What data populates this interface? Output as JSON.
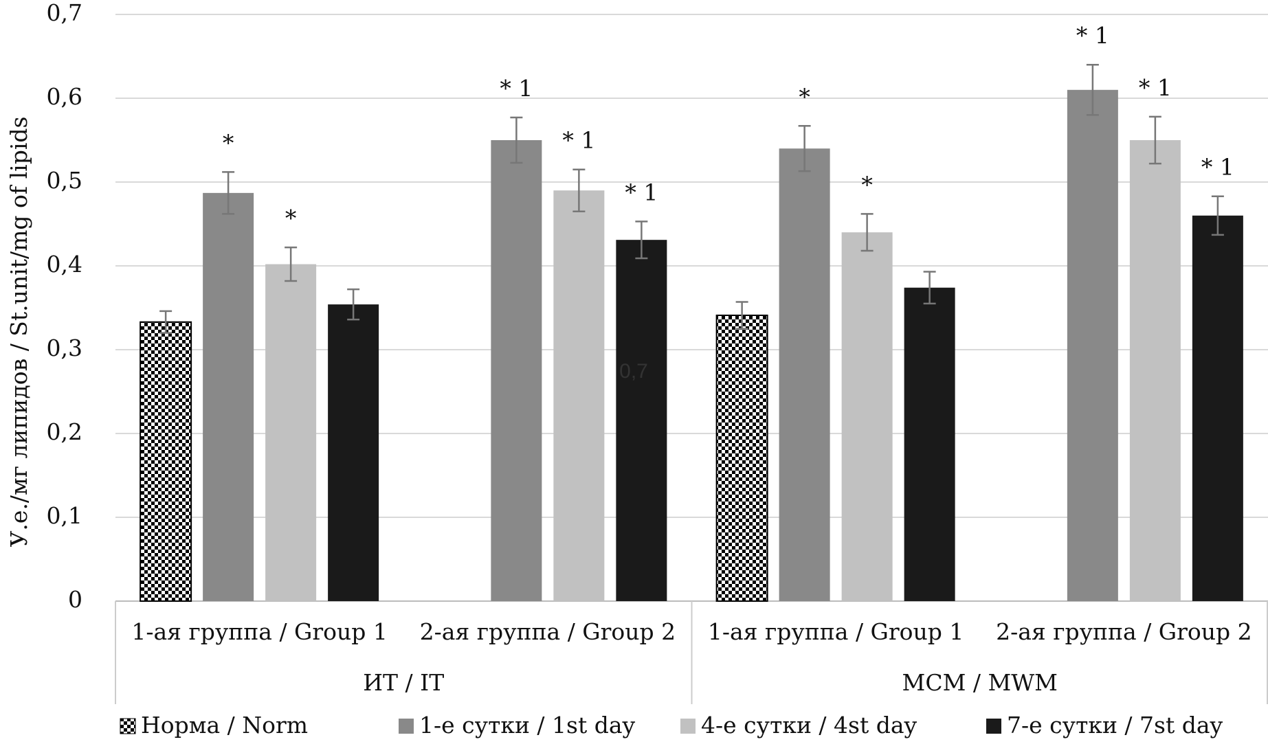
{
  "chart_data": {
    "type": "bar",
    "y_label": "У.е./мг липидов / St.unit/mg of lipids",
    "categories": [
      "1-ая группа / Group 1",
      "2-ая группа / Group 2",
      "1-ая группа / Group 1",
      "2-ая группа / Group 2"
    ],
    "category_groups": [
      "ИТ / IT",
      "МСМ / MWM"
    ],
    "series": [
      {
        "name": "Норма / Norm",
        "color": "pattern",
        "values": [
          0.333,
          null,
          0.341,
          null
        ],
        "errors": [
          0.013,
          null,
          0.016,
          null
        ],
        "significance": [
          null,
          null,
          null,
          null
        ]
      },
      {
        "name": "1-е сутки / 1st day",
        "color": "#898989",
        "values": [
          0.487,
          0.55,
          0.54,
          0.61
        ],
        "errors": [
          0.025,
          0.027,
          0.027,
          0.03
        ],
        "significance": [
          "*",
          "* 1",
          "*",
          "* 1"
        ]
      },
      {
        "name": "4-е сутки / 4st day",
        "color": "#c1c1c1",
        "values": [
          0.402,
          0.49,
          0.44,
          0.55
        ],
        "errors": [
          0.02,
          0.025,
          0.022,
          0.028
        ],
        "significance": [
          "*",
          "* 1",
          "*",
          "* 1"
        ]
      },
      {
        "name": "7-е сутки / 7st day",
        "color": "#1a1a1a",
        "values": [
          0.354,
          0.431,
          0.374,
          0.46
        ],
        "errors": [
          0.018,
          0.022,
          0.019,
          0.023
        ],
        "significance": [
          null,
          "* 1",
          null,
          "* 1"
        ]
      }
    ],
    "annotations": [
      "0,7"
    ],
    "ylim": [
      0,
      0.7
    ],
    "yticks": [
      0,
      {
        "value": 0.1,
        "label": "0,1"
      },
      {
        "value": 0.2,
        "label": "0,2"
      },
      {
        "value": 0.3,
        "label": "0,3"
      },
      {
        "value": 0.4,
        "label": "0,4"
      },
      {
        "value": 0.5,
        "label": "0,5"
      },
      {
        "value": 0.6,
        "label": "0,6"
      },
      {
        "value": 0.7,
        "label": "0,7"
      }
    ],
    "grid": true,
    "legend": "bottom"
  }
}
